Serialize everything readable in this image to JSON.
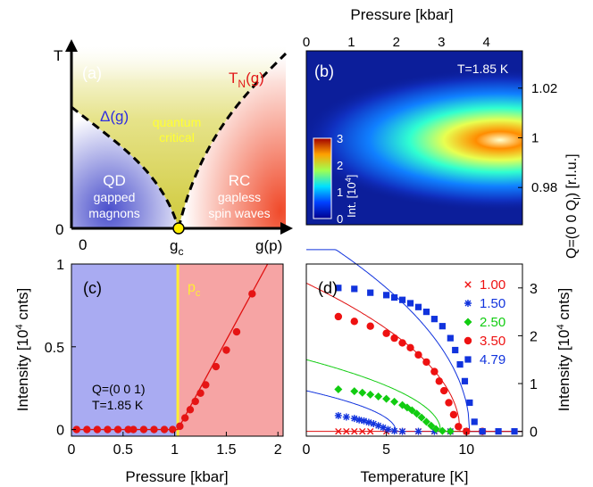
{
  "colors": {
    "qd_blue": "#5a5fd0",
    "rc_red": "#f0603a",
    "critical_yellow": "#d8d24a",
    "phase_line": "#000000",
    "gc_dot": "#ffee00",
    "panel_c_left_bg": "#a9abf2",
    "panel_c_right_bg": "#f6a4a4",
    "pc_line": "#ffee33",
    "fit_red": "#e01010"
  },
  "panel_a": {
    "label": "(a)",
    "y_axis_label": "T",
    "x_axis_label": "g(p)",
    "origin_x": "0",
    "origin_y": "0",
    "gc_label_main": "g",
    "gc_label_sub": "c",
    "tn_label_main": "T",
    "tn_label_sub": "N",
    "tn_label_tail": "(g)",
    "delta_label": "Δ(g)",
    "critical_label_1": "quantum",
    "critical_label_2": "critical",
    "qd_title": "QD",
    "qd_line1": "gapped",
    "qd_line2": "magnons",
    "rc_title": "RC",
    "rc_line1": "gapless",
    "rc_line2": "spin waves"
  },
  "panel_b": {
    "label": "(b)",
    "temperature": "T=1.85 K",
    "top_axis_label": "Pressure [kbar]",
    "top_ticks": [
      "0",
      "1",
      "2",
      "3",
      "4"
    ],
    "right_ticks": [
      "1.02",
      "1",
      "0.98"
    ],
    "right_axis_label": "Q=(0 0 Q",
    "right_axis_sub": "l",
    "right_axis_tail": ") [r.l.u.]",
    "colorbar_ticks": [
      "3",
      "2",
      "1",
      "0"
    ],
    "colorbar_label": "Int. [10",
    "colorbar_exp": "4",
    "colorbar_tail": "]"
  },
  "panel_c": {
    "label": "(c)",
    "pc_main": "p",
    "pc_sub": "c",
    "annotation_1": "Q=(0 0 1)",
    "annotation_2": "T=1.85 K",
    "x_label": "Pressure [kbar]",
    "y_label_main": "Intensity [10",
    "y_label_exp": "4",
    "y_label_tail": " cnts]",
    "x_ticks": [
      "0",
      "0.5",
      "1",
      "1.5",
      "2"
    ],
    "y_ticks": [
      "0",
      "0.5",
      "1"
    ]
  },
  "panel_d": {
    "label": "(d)",
    "x_label": "Temperature [K]",
    "y_label_main": "Intensity [10",
    "y_label_exp": "4",
    "y_label_tail": " cnts]",
    "x_ticks": [
      "0",
      "5",
      "10"
    ],
    "y_ticks": [
      "0",
      "1",
      "2",
      "3"
    ]
  },
  "chart_data": [
    {
      "panel": "a",
      "type": "diagram",
      "regions": [
        "QD gapped magnons",
        "quantum critical",
        "RC gapless spin waves"
      ],
      "critical_point": "g_c"
    },
    {
      "panel": "b",
      "type": "heatmap",
      "x_axis": "Pressure [kbar]",
      "xlim": [
        0,
        4.8
      ],
      "y_axis": "Q=(0 0 Q_l) [r.l.u.]",
      "ylim": [
        0.965,
        1.035
      ],
      "colorbar_range": [
        0,
        3
      ],
      "description_values": {
        "peak_center_Q": 1.0,
        "onset_pressure": 1.0,
        "max_intensity": 3
      }
    },
    {
      "panel": "c",
      "type": "scatter",
      "xlabel": "Pressure [kbar]",
      "ylabel": "Intensity [10^4 cnts]",
      "xlim": [
        0,
        2.05
      ],
      "ylim": [
        -0.04,
        1.0
      ],
      "pc": 1.03,
      "x": [
        0.05,
        0.15,
        0.25,
        0.35,
        0.45,
        0.55,
        0.6,
        0.7,
        0.8,
        0.9,
        0.98,
        1.05,
        1.1,
        1.15,
        1.2,
        1.25,
        1.3,
        1.4,
        1.5,
        1.6,
        1.75
      ],
      "values": [
        0.0,
        0.0,
        0.0,
        0.0,
        0.0,
        0.0,
        0.0,
        0.0,
        0.0,
        0.0,
        0.0,
        0.02,
        0.07,
        0.12,
        0.17,
        0.22,
        0.27,
        0.38,
        0.48,
        0.59,
        0.82
      ],
      "fit_line": {
        "x": [
          0.0,
          1.03,
          1.9
        ],
        "y": [
          0.0,
          0.0,
          1.0
        ]
      }
    },
    {
      "panel": "d",
      "type": "scatter",
      "xlabel": "Temperature [K]",
      "ylabel": "Intensity [10^4 cnts]",
      "xlim": [
        0,
        13.5
      ],
      "ylim": [
        -0.1,
        3.5
      ],
      "series": [
        {
          "name": "1.00",
          "color": "#ee1111",
          "marker": "x",
          "x": [
            2,
            2.5,
            3,
            3.5,
            4,
            5,
            6,
            7,
            8,
            9,
            10,
            11
          ],
          "values": [
            0,
            0,
            0,
            0,
            0,
            0,
            0,
            0,
            0,
            0,
            0,
            0
          ]
        },
        {
          "name": "1.50",
          "color": "#1133dd",
          "marker": "asterisk",
          "x": [
            2,
            2.5,
            3,
            3.3,
            3.6,
            3.9,
            4.2,
            4.5,
            4.8,
            5.1,
            5.5,
            6,
            7,
            8,
            9,
            10,
            11
          ],
          "values": [
            0.33,
            0.3,
            0.27,
            0.24,
            0.22,
            0.19,
            0.16,
            0.12,
            0.08,
            0.04,
            0.01,
            0,
            0,
            0,
            0,
            0,
            0
          ]
        },
        {
          "name": "2.50",
          "color": "#11cc11",
          "marker": "diamond",
          "x": [
            2,
            3,
            3.5,
            4,
            4.5,
            5,
            5.5,
            6,
            6.3,
            6.6,
            6.9,
            7.2,
            7.5,
            7.8,
            8.1,
            8.5,
            9,
            10
          ],
          "values": [
            0.88,
            0.84,
            0.81,
            0.77,
            0.73,
            0.68,
            0.62,
            0.55,
            0.5,
            0.44,
            0.37,
            0.29,
            0.2,
            0.12,
            0.05,
            0.01,
            0,
            0
          ]
        },
        {
          "name": "3.50",
          "color": "#ee1111",
          "marker": "circle",
          "x": [
            2,
            3,
            4,
            5,
            5.5,
            6,
            6.5,
            7,
            7.5,
            8,
            8.3,
            8.6,
            8.9,
            9.2,
            9.5,
            10,
            11
          ],
          "values": [
            2.4,
            2.3,
            2.2,
            2.05,
            1.95,
            1.85,
            1.75,
            1.6,
            1.45,
            1.25,
            1.05,
            0.85,
            0.6,
            0.35,
            0.1,
            0,
            0
          ]
        },
        {
          "name": "4.79",
          "color": "#1133dd",
          "marker": "square",
          "x": [
            2,
            3,
            4,
            5,
            5.5,
            6,
            6.5,
            7,
            7.5,
            8,
            8.5,
            9,
            9.3,
            9.6,
            9.9,
            10.2,
            10.5,
            11,
            12,
            13
          ],
          "values": [
            3.0,
            2.98,
            2.9,
            2.85,
            2.8,
            2.75,
            2.68,
            2.6,
            2.5,
            2.35,
            2.2,
            1.95,
            1.7,
            1.4,
            1.05,
            0.6,
            0.2,
            0,
            0,
            0
          ]
        }
      ],
      "legend_position": "top-right"
    }
  ]
}
